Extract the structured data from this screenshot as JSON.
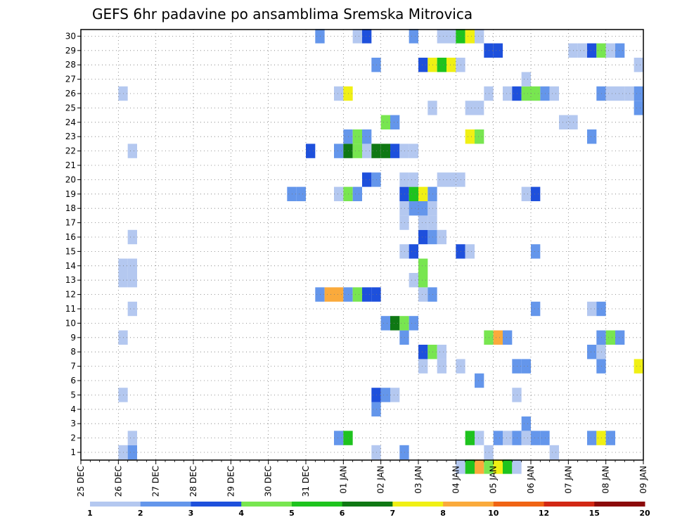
{
  "chart_data": {
    "type": "heatmap",
    "title": "GEFS 6hr padavine po ansamblima Sremska Mitrovica",
    "x_labels": [
      "25 DEC",
      "26 DEC",
      "27 DEC",
      "28 DEC",
      "29 DEC",
      "30 DEC",
      "31 DEC",
      "01 JAN",
      "02 JAN",
      "03 JAN",
      "04 JAN",
      "05 JAN",
      "06 JAN",
      "07 JAN",
      "08 JAN",
      "09 JAN"
    ],
    "x_range_days": [
      0,
      15
    ],
    "steps_per_day": 4,
    "y_labels": [
      "1",
      "2",
      "3",
      "4",
      "5",
      "6",
      "7",
      "8",
      "9",
      "10",
      "11",
      "12",
      "13",
      "14",
      "15",
      "16",
      "17",
      "18",
      "19",
      "20",
      "21",
      "22",
      "23",
      "24",
      "25",
      "26",
      "27",
      "28",
      "29",
      "30"
    ],
    "y_range": [
      0,
      30
    ],
    "grid": true,
    "colorbar": {
      "labels": [
        "1",
        "2",
        "3",
        "4",
        "5",
        "6",
        "7",
        "8",
        "10",
        "12",
        "15",
        "20"
      ],
      "colors": [
        "#b4c8f0",
        "#6496eb",
        "#1e50dc",
        "#78e650",
        "#1ec31e",
        "#0f7814",
        "#f0f014",
        "#faaa3c",
        "#f06414",
        "#d22814",
        "#8c0a0a"
      ],
      "bounds": [
        1,
        2,
        3,
        4,
        5,
        6,
        7,
        8,
        10,
        12,
        15,
        20
      ]
    },
    "cells": [
      {
        "m": 1,
        "s": [
          [
            5,
            1
          ],
          [
            6,
            2
          ],
          [
            32,
            1
          ],
          [
            35,
            2
          ],
          [
            44,
            1
          ],
          [
            51,
            1
          ]
        ]
      },
      {
        "m": 2,
        "s": [
          [
            6,
            1
          ],
          [
            28,
            2
          ],
          [
            29,
            5
          ],
          [
            42,
            5
          ],
          [
            43,
            1
          ],
          [
            45,
            2
          ],
          [
            46,
            1
          ],
          [
            47,
            2
          ],
          [
            48,
            1
          ],
          [
            49,
            2
          ],
          [
            50,
            2
          ],
          [
            55,
            2
          ],
          [
            56,
            7
          ],
          [
            57,
            2
          ]
        ]
      },
      {
        "m": 3,
        "s": [
          [
            48,
            2
          ]
        ]
      },
      {
        "m": 4,
        "s": [
          [
            32,
            2
          ]
        ]
      },
      {
        "m": 5,
        "s": [
          [
            5,
            1
          ],
          [
            32,
            3
          ],
          [
            33,
            2
          ],
          [
            34,
            1
          ],
          [
            47,
            1
          ]
        ]
      },
      {
        "m": 6,
        "s": [
          [
            43,
            2
          ]
        ]
      },
      {
        "m": 7,
        "s": [
          [
            37,
            1
          ],
          [
            39,
            1
          ],
          [
            41,
            1
          ],
          [
            47,
            2
          ],
          [
            48,
            2
          ],
          [
            56,
            2
          ],
          [
            60,
            7
          ]
        ]
      },
      {
        "m": 8,
        "s": [
          [
            37,
            3
          ],
          [
            38,
            4
          ],
          [
            39,
            1
          ],
          [
            55,
            2
          ],
          [
            56,
            1
          ]
        ]
      },
      {
        "m": 9,
        "s": [
          [
            5,
            1
          ],
          [
            35,
            2
          ],
          [
            44,
            4
          ],
          [
            45,
            8
          ],
          [
            46,
            2
          ],
          [
            56,
            2
          ],
          [
            57,
            4
          ],
          [
            58,
            2
          ]
        ]
      },
      {
        "m": 10,
        "s": [
          [
            33,
            2
          ],
          [
            34,
            6
          ],
          [
            35,
            4
          ],
          [
            36,
            2
          ]
        ]
      },
      {
        "m": 11,
        "s": [
          [
            6,
            1
          ],
          [
            49,
            2
          ],
          [
            55,
            1
          ],
          [
            56,
            2
          ]
        ]
      },
      {
        "m": 12,
        "s": [
          [
            26,
            2
          ],
          [
            27,
            8
          ],
          [
            28,
            8
          ],
          [
            29,
            2
          ],
          [
            30,
            4
          ],
          [
            31,
            3
          ],
          [
            32,
            3
          ],
          [
            37,
            1
          ],
          [
            38,
            2
          ]
        ]
      },
      {
        "m": 13,
        "s": [
          [
            5,
            1
          ],
          [
            6,
            1
          ],
          [
            36,
            1
          ],
          [
            37,
            4
          ]
        ]
      },
      {
        "m": 14,
        "s": [
          [
            5,
            1
          ],
          [
            6,
            1
          ],
          [
            37,
            4
          ]
        ]
      },
      {
        "m": 15,
        "s": [
          [
            35,
            1
          ],
          [
            36,
            3
          ],
          [
            41,
            3
          ],
          [
            42,
            1
          ],
          [
            49,
            2
          ]
        ]
      },
      {
        "m": 16,
        "s": [
          [
            6,
            1
          ],
          [
            37,
            3
          ],
          [
            38,
            2
          ],
          [
            39,
            1
          ]
        ]
      },
      {
        "m": 17,
        "s": [
          [
            35,
            1
          ],
          [
            37,
            1
          ],
          [
            38,
            1
          ]
        ]
      },
      {
        "m": 18,
        "s": [
          [
            35,
            1
          ],
          [
            36,
            2
          ],
          [
            37,
            2
          ],
          [
            38,
            1
          ]
        ]
      },
      {
        "m": 19,
        "s": [
          [
            23,
            2
          ],
          [
            24,
            2
          ],
          [
            28,
            1
          ],
          [
            29,
            4
          ],
          [
            30,
            2
          ],
          [
            35,
            3
          ],
          [
            36,
            5
          ],
          [
            37,
            7
          ],
          [
            38,
            2
          ],
          [
            48,
            1
          ],
          [
            49,
            3
          ]
        ]
      },
      {
        "m": 20,
        "s": [
          [
            31,
            3
          ],
          [
            32,
            2
          ],
          [
            35,
            1
          ],
          [
            36,
            1
          ],
          [
            39,
            1
          ],
          [
            40,
            1
          ],
          [
            41,
            1
          ]
        ]
      },
      {
        "m": 21,
        "s": []
      },
      {
        "m": 22,
        "s": [
          [
            6,
            1
          ],
          [
            25,
            3
          ],
          [
            28,
            2
          ],
          [
            29,
            6
          ],
          [
            30,
            4
          ],
          [
            31,
            1
          ],
          [
            32,
            6
          ],
          [
            33,
            6
          ],
          [
            34,
            3
          ],
          [
            35,
            1
          ],
          [
            36,
            1
          ]
        ]
      },
      {
        "m": 23,
        "s": [
          [
            29,
            2
          ],
          [
            30,
            4
          ],
          [
            31,
            2
          ],
          [
            42,
            7
          ],
          [
            43,
            4
          ],
          [
            55,
            2
          ]
        ]
      },
      {
        "m": 24,
        "s": [
          [
            33,
            4
          ],
          [
            34,
            2
          ],
          [
            52,
            1
          ],
          [
            53,
            1
          ]
        ]
      },
      {
        "m": 25,
        "s": [
          [
            38,
            1
          ],
          [
            42,
            1
          ],
          [
            43,
            1
          ],
          [
            60,
            2
          ]
        ]
      },
      {
        "m": 26,
        "s": [
          [
            5,
            1
          ],
          [
            28,
            1
          ],
          [
            29,
            7
          ],
          [
            44,
            1
          ],
          [
            46,
            1
          ],
          [
            47,
            3
          ],
          [
            48,
            4
          ],
          [
            49,
            4
          ],
          [
            50,
            2
          ],
          [
            51,
            1
          ],
          [
            56,
            2
          ],
          [
            57,
            1
          ],
          [
            58,
            1
          ],
          [
            59,
            1
          ],
          [
            60,
            2
          ]
        ]
      },
      {
        "m": 27,
        "s": [
          [
            48,
            1
          ]
        ]
      },
      {
        "m": 28,
        "s": [
          [
            32,
            2
          ],
          [
            37,
            3
          ],
          [
            38,
            7
          ],
          [
            39,
            5
          ],
          [
            40,
            7
          ],
          [
            41,
            1
          ],
          [
            60,
            1
          ]
        ]
      },
      {
        "m": 29,
        "s": [
          [
            44,
            3
          ],
          [
            45,
            3
          ],
          [
            53,
            1
          ],
          [
            54,
            1
          ],
          [
            55,
            3
          ],
          [
            56,
            4
          ],
          [
            57,
            1
          ],
          [
            58,
            2
          ]
        ]
      },
      {
        "m": 30,
        "s": [
          [
            26,
            2
          ],
          [
            30,
            1
          ],
          [
            31,
            3
          ],
          [
            36,
            2
          ],
          [
            39,
            1
          ],
          [
            40,
            1
          ],
          [
            41,
            5
          ],
          [
            42,
            7
          ],
          [
            43,
            1
          ]
        ]
      },
      {
        "m": 0,
        "s": [
          [
            41,
            1
          ],
          [
            42,
            5
          ],
          [
            43,
            8
          ],
          [
            44,
            4
          ],
          [
            45,
            7
          ],
          [
            46,
            5
          ],
          [
            47,
            1
          ]
        ]
      }
    ]
  }
}
